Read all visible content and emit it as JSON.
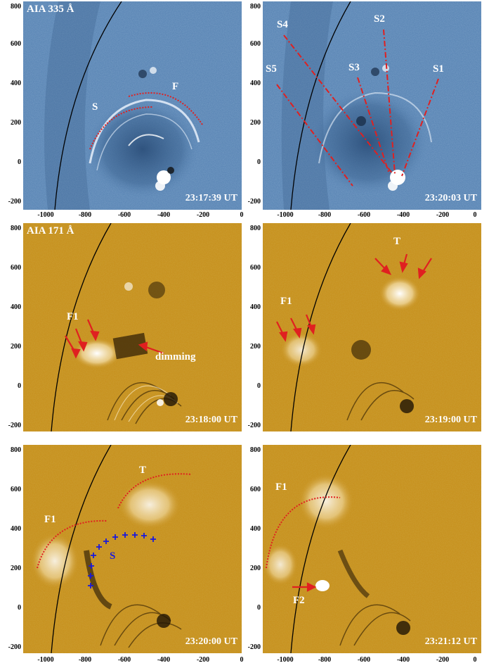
{
  "panels": [
    {
      "title": "AIA 335 Å",
      "time": "23:17:39 UT",
      "labels": [
        "S",
        "F"
      ],
      "colormap": "blue"
    },
    {
      "title": "",
      "time": "23:20:03 UT",
      "labels": [
        "S4",
        "S2",
        "S5",
        "S3",
        "S1"
      ],
      "colormap": "blue"
    },
    {
      "title": "AIA 171 Å",
      "time": "23:18:00 UT",
      "labels": [
        "F1",
        "dimming"
      ],
      "colormap": "gold"
    },
    {
      "title": "",
      "time": "23:19:00 UT",
      "labels": [
        "T",
        "F1"
      ],
      "colormap": "gold"
    },
    {
      "title": "",
      "time": "23:20:00 UT",
      "labels": [
        "T",
        "F1",
        "S"
      ],
      "colormap": "gold"
    },
    {
      "title": "",
      "time": "23:21:12 UT",
      "labels": [
        "F1",
        "F2"
      ],
      "colormap": "gold"
    }
  ],
  "axes": {
    "y_ticks": [
      "800",
      "600",
      "400",
      "200",
      "0",
      "-200"
    ],
    "x_ticks": [
      "-1000",
      "-800",
      "-600",
      "-400",
      "-200",
      "0"
    ]
  },
  "colors": {
    "blue_bg": "#5b86b5",
    "gold_bg": "#c8921f",
    "annotation_red": "#e02020",
    "marker_blue": "#1a1adb"
  }
}
